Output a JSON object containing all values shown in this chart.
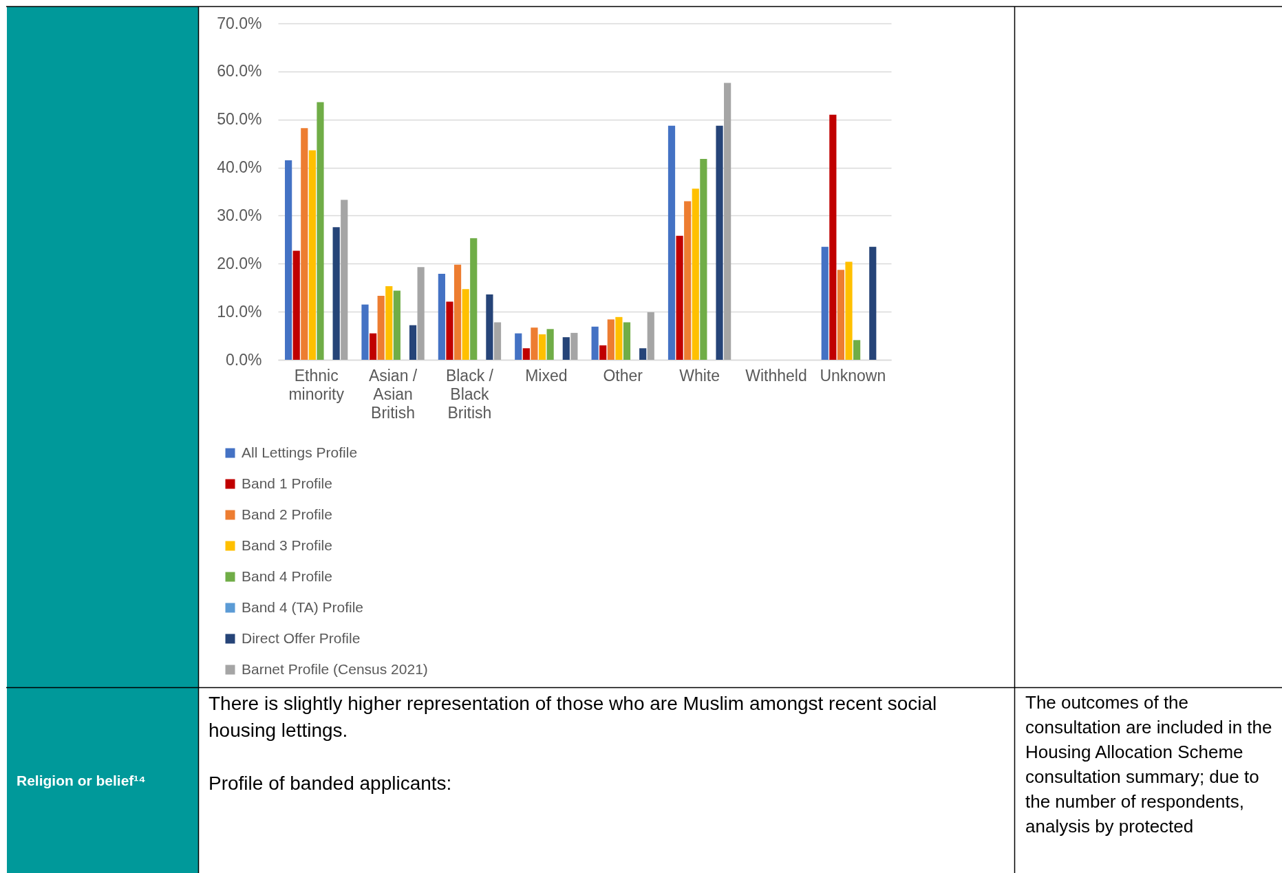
{
  "chart_data": {
    "type": "bar",
    "categories": [
      "Ethnic minority",
      "Asian / Asian British",
      "Black / Black British",
      "Mixed",
      "Other",
      "White",
      "Withheld",
      "Unknown"
    ],
    "series": [
      {
        "name": "All Lettings Profile",
        "color": "#4472c4",
        "values": [
          41.5,
          11.5,
          17.9,
          5.5,
          6.9,
          48.7,
          null,
          23.5
        ]
      },
      {
        "name": "Band 1 Profile",
        "color": "#c00000",
        "values": [
          22.7,
          5.5,
          12.1,
          2.4,
          3.0,
          25.8,
          null,
          51.0
        ]
      },
      {
        "name": "Band 2 Profile",
        "color": "#ed7d31",
        "values": [
          48.2,
          13.3,
          19.8,
          6.7,
          8.4,
          33.0,
          null,
          18.7
        ]
      },
      {
        "name": "Band 3 Profile",
        "color": "#ffc000",
        "values": [
          43.6,
          15.3,
          14.7,
          5.3,
          8.9,
          35.6,
          null,
          20.4
        ]
      },
      {
        "name": "Band 4 Profile",
        "color": "#70ad47",
        "values": [
          53.6,
          14.4,
          25.3,
          6.4,
          7.8,
          41.8,
          null,
          4.1
        ]
      },
      {
        "name": "Band 4 (TA) Profile",
        "color": "#5b9bd5",
        "values": [
          null,
          null,
          null,
          null,
          null,
          null,
          null,
          null
        ]
      },
      {
        "name": "Direct Offer Profile",
        "color": "#264478",
        "values": [
          27.6,
          7.2,
          13.6,
          4.7,
          2.4,
          48.7,
          null,
          23.5
        ]
      },
      {
        "name": "Barnet Profile (Census 2021)",
        "color": "#a5a5a5",
        "values": [
          33.3,
          19.3,
          7.8,
          5.6,
          9.9,
          57.6,
          null,
          null
        ]
      }
    ],
    "ylim": [
      0,
      70
    ],
    "yticks": [
      {
        "value": 0,
        "label": "0.0%"
      },
      {
        "value": 10,
        "label": "10.0%"
      },
      {
        "value": 20,
        "label": "20.0%"
      },
      {
        "value": 30,
        "label": "30.0%"
      },
      {
        "value": 40,
        "label": "40.0%"
      },
      {
        "value": 50,
        "label": "50.0%"
      },
      {
        "value": 60,
        "label": "60.0%"
      },
      {
        "value": 70,
        "label": "70.0%"
      }
    ],
    "grid": "y",
    "legend": "bottom",
    "annotations": [
      "Religion or belief¹⁴",
      "There is slightly higher representation of those who are Muslim amongst recent social housing lettings.",
      "Profile of banded applicants:",
      "The outcomes of the consultation are included in the Housing Allocation Scheme consultation summary; due to the number of respondents, analysis by protected"
    ]
  }
}
